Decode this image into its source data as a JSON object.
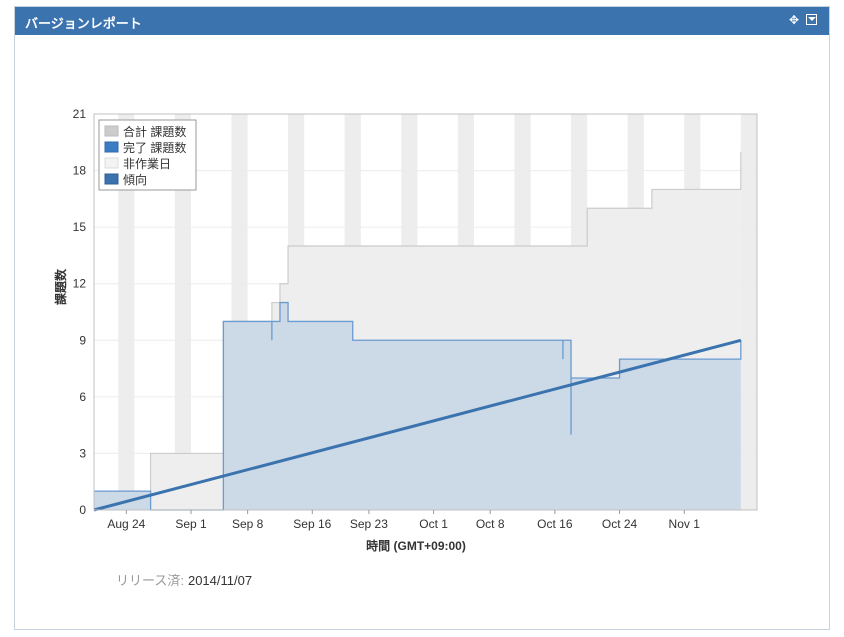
{
  "gadget": {
    "title": "バージョンレポート",
    "released_label": "リリース済:",
    "released_date": "2014/11/07"
  },
  "icons": {
    "move": "move-icon",
    "menu": "dropdown-menu-icon"
  },
  "colors": {
    "total": "#cccccc",
    "total_fill": "#eeeeee",
    "completed": "#3b73af",
    "completed_fill": "#ccd9e6",
    "trend": "#3b73af",
    "nonworking": "#e6e6e6"
  },
  "chart_data": {
    "type": "area",
    "xlabel": "時間 (GMT+09:00)",
    "ylabel": "課題数",
    "ylim": [
      0,
      21
    ],
    "yticks": [
      0,
      3,
      6,
      9,
      12,
      15,
      18,
      21
    ],
    "xlim": [
      "2014-08-20",
      "2014-11-10"
    ],
    "xticks": [
      {
        "date": "2014-08-24",
        "label": "Aug 24"
      },
      {
        "date": "2014-09-01",
        "label": "Sep 1"
      },
      {
        "date": "2014-09-08",
        "label": "Sep 8"
      },
      {
        "date": "2014-09-16",
        "label": "Sep 16"
      },
      {
        "date": "2014-09-23",
        "label": "Sep 23"
      },
      {
        "date": "2014-10-01",
        "label": "Oct 1"
      },
      {
        "date": "2014-10-08",
        "label": "Oct 8"
      },
      {
        "date": "2014-10-16",
        "label": "Oct 16"
      },
      {
        "date": "2014-10-24",
        "label": "Oct 24"
      },
      {
        "date": "2014-11-01",
        "label": "Nov 1"
      }
    ],
    "legend": {
      "placement": "top-left",
      "entries": [
        "合計 課題数",
        "完了 課題数",
        "非作業日",
        "傾向"
      ]
    },
    "series": [
      {
        "name": "合計 課題数",
        "step": true,
        "points": [
          [
            "2014-08-20",
            1
          ],
          [
            "2014-08-27",
            1
          ],
          [
            "2014-08-27",
            3
          ],
          [
            "2014-09-05",
            3
          ],
          [
            "2014-09-05",
            10
          ],
          [
            "2014-09-11",
            10
          ],
          [
            "2014-09-11",
            11
          ],
          [
            "2014-09-12",
            11
          ],
          [
            "2014-09-12",
            12
          ],
          [
            "2014-09-13",
            12
          ],
          [
            "2014-09-13",
            14
          ],
          [
            "2014-10-20",
            14
          ],
          [
            "2014-10-20",
            16
          ],
          [
            "2014-10-28",
            16
          ],
          [
            "2014-10-28",
            17
          ],
          [
            "2014-11-08",
            17
          ],
          [
            "2014-11-08",
            19
          ]
        ]
      },
      {
        "name": "完了 課題数",
        "step": true,
        "points": [
          [
            "2014-08-20",
            1
          ],
          [
            "2014-08-27",
            1
          ],
          [
            "2014-08-27",
            0
          ],
          [
            "2014-09-05",
            0
          ],
          [
            "2014-09-05",
            10
          ],
          [
            "2014-09-11",
            10
          ],
          [
            "2014-09-11",
            9
          ],
          [
            "2014-09-11",
            10
          ],
          [
            "2014-09-12",
            10
          ],
          [
            "2014-09-12",
            11
          ],
          [
            "2014-09-13",
            11
          ],
          [
            "2014-09-13",
            10
          ],
          [
            "2014-09-21",
            10
          ],
          [
            "2014-09-21",
            9
          ],
          [
            "2014-10-17",
            9
          ],
          [
            "2014-10-17",
            8
          ],
          [
            "2014-10-17",
            9
          ],
          [
            "2014-10-18",
            9
          ],
          [
            "2014-10-18",
            4
          ],
          [
            "2014-10-18",
            7
          ],
          [
            "2014-10-24",
            7
          ],
          [
            "2014-10-24",
            8
          ],
          [
            "2014-11-08",
            8
          ],
          [
            "2014-11-08",
            9
          ]
        ]
      },
      {
        "name": "傾向",
        "points": [
          [
            "2014-08-20",
            0
          ],
          [
            "2014-11-08",
            9
          ]
        ]
      }
    ],
    "nonworking_days": [
      [
        "2014-08-23",
        "2014-08-25"
      ],
      [
        "2014-08-30",
        "2014-09-01"
      ],
      [
        "2014-09-06",
        "2014-09-08"
      ],
      [
        "2014-09-13",
        "2014-09-15"
      ],
      [
        "2014-09-20",
        "2014-09-22"
      ],
      [
        "2014-09-27",
        "2014-09-29"
      ],
      [
        "2014-10-04",
        "2014-10-06"
      ],
      [
        "2014-10-11",
        "2014-10-13"
      ],
      [
        "2014-10-18",
        "2014-10-20"
      ],
      [
        "2014-10-25",
        "2014-10-27"
      ],
      [
        "2014-11-01",
        "2014-11-03"
      ],
      [
        "2014-11-08",
        "2014-11-10"
      ]
    ]
  }
}
